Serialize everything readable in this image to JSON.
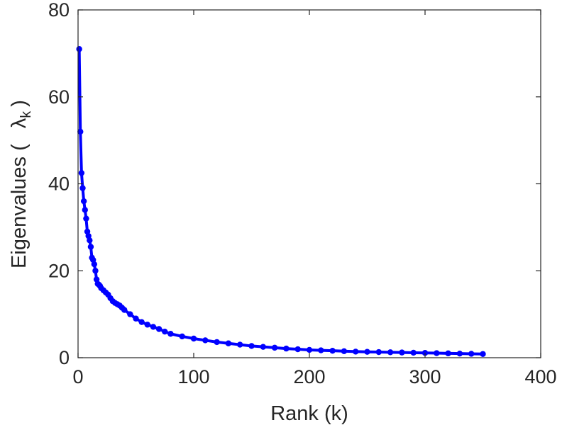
{
  "chart_data": {
    "type": "line",
    "title": "",
    "xlabel": "Rank (k)",
    "ylabel_text": "Eigenvalues (",
    "ylabel_symbol": "λ",
    "ylabel_subscript": "k",
    "ylabel_close": ")",
    "xlim": [
      0,
      400
    ],
    "ylim": [
      0,
      80
    ],
    "xticks": [
      0,
      100,
      200,
      300,
      400
    ],
    "yticks": [
      0,
      20,
      40,
      60,
      80
    ],
    "xtick_labels": [
      "0",
      "100",
      "200",
      "300",
      "400"
    ],
    "ytick_labels": [
      "0",
      "20",
      "40",
      "60",
      "80"
    ],
    "grid": false,
    "legend": "none",
    "series_color": "#0000ff",
    "axis_color": "#262626",
    "series": [
      {
        "marker": "circle",
        "x": [
          1,
          2,
          3,
          4,
          5,
          6,
          7,
          8,
          9,
          10,
          11,
          12,
          13,
          14,
          15,
          16,
          17,
          18,
          19,
          20,
          22,
          24,
          26,
          28,
          30,
          32,
          34,
          36,
          38,
          40,
          45,
          50,
          55,
          60,
          65,
          70,
          75,
          80,
          90,
          100,
          110,
          120,
          130,
          140,
          150,
          160,
          170,
          180,
          190,
          200,
          210,
          220,
          230,
          240,
          250,
          260,
          270,
          280,
          290,
          300,
          310,
          320,
          330,
          340,
          350
        ],
        "y": [
          71.0,
          52.0,
          42.5,
          39.0,
          36.0,
          34.0,
          32.0,
          29.0,
          28.0,
          27.0,
          25.5,
          23.0,
          22.5,
          21.5,
          20.0,
          18.0,
          17.0,
          16.8,
          16.5,
          16.0,
          15.5,
          15.0,
          14.5,
          13.7,
          13.0,
          12.6,
          12.3,
          12.0,
          11.5,
          11.0,
          10.0,
          9.0,
          8.2,
          7.6,
          7.1,
          6.6,
          6.0,
          5.5,
          4.9,
          4.4,
          4.0,
          3.6,
          3.3,
          3.0,
          2.7,
          2.5,
          2.3,
          2.1,
          1.95,
          1.8,
          1.7,
          1.6,
          1.5,
          1.4,
          1.35,
          1.3,
          1.25,
          1.2,
          1.15,
          1.1,
          1.05,
          1.0,
          0.95,
          0.9,
          0.85
        ]
      }
    ]
  }
}
